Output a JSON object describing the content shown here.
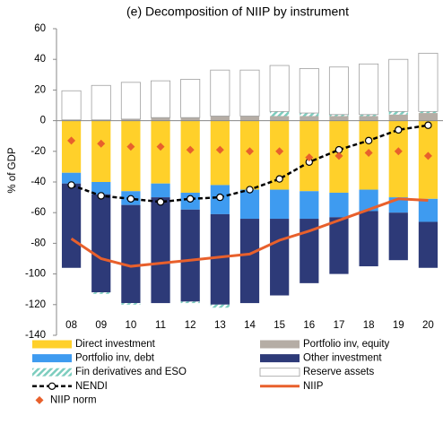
{
  "chart_data": {
    "type": "bar",
    "title": "(e) Decomposition of NIIP by instrument",
    "y_label": "% of GDP",
    "categories": [
      "08",
      "09",
      "10",
      "11",
      "12",
      "13",
      "14",
      "15",
      "16",
      "17",
      "18",
      "19",
      "20"
    ],
    "ylim": [
      -140,
      60
    ],
    "yticks": [
      -140,
      -120,
      -100,
      -80,
      -60,
      -40,
      -20,
      0,
      20,
      40,
      60
    ],
    "series": [
      {
        "name": "Direct investment",
        "kind": "bar",
        "color": "#FFD02A",
        "values": [
          -34,
          -40,
          -46,
          -41,
          -47,
          -42,
          -45,
          -45,
          -46,
          -47,
          -45,
          -50,
          -51
        ]
      },
      {
        "name": "Portfolio inv, equity",
        "kind": "bar",
        "color": "#B5ADA5",
        "values": [
          0.5,
          0.5,
          1,
          2,
          2,
          3,
          3,
          3,
          3,
          3,
          3,
          4,
          5
        ]
      },
      {
        "name": "Portfolio inv, debt",
        "kind": "bar",
        "color": "#3E9BF0",
        "values": [
          -7,
          -8,
          -9,
          -9,
          -11,
          -19,
          -19,
          -19,
          -18,
          -16,
          -14,
          -10,
          -15
        ]
      },
      {
        "name": "Other investment",
        "kind": "bar",
        "color": "#2D3A78",
        "values": [
          -55,
          -64,
          -64,
          -69,
          -60,
          -59,
          -55,
          -50,
          -42,
          -37,
          -36,
          -31,
          -30
        ]
      },
      {
        "name": "Fin derivatives and ESO",
        "kind": "bar",
        "color": "#7CCDBE",
        "hatch": true,
        "values": [
          0,
          -1,
          -1,
          0,
          -1,
          -2,
          0,
          3,
          2,
          1,
          1,
          2,
          1
        ]
      },
      {
        "name": "Reserve assets",
        "kind": "bar",
        "color": "#FFFFFF",
        "edgecolor": "#A0A0A0",
        "values": [
          19,
          22.5,
          24,
          24,
          25,
          30,
          30,
          30,
          29,
          31,
          33,
          34,
          38
        ]
      },
      {
        "name": "NENDI",
        "kind": "line",
        "color": "#000000",
        "dash": true,
        "marker": "circle",
        "values": [
          -42,
          -49,
          -51,
          -53,
          -51,
          -50,
          -45,
          -38,
          -27,
          -19,
          -13,
          -6,
          -3
        ]
      },
      {
        "name": "NIIP",
        "kind": "line",
        "color": "#E8602C",
        "values": [
          -77,
          -90,
          -95,
          -93,
          -91,
          -89,
          -87,
          -78,
          -72,
          -65,
          -58,
          -51,
          -52
        ]
      },
      {
        "name": "NIIP norm",
        "kind": "scatter",
        "color": "#E8602C",
        "marker": "diamond",
        "values": [
          -13,
          -15,
          -17,
          -17,
          -19,
          -19,
          -20,
          -20,
          -24,
          -23,
          -21,
          -20,
          -23
        ]
      }
    ]
  }
}
